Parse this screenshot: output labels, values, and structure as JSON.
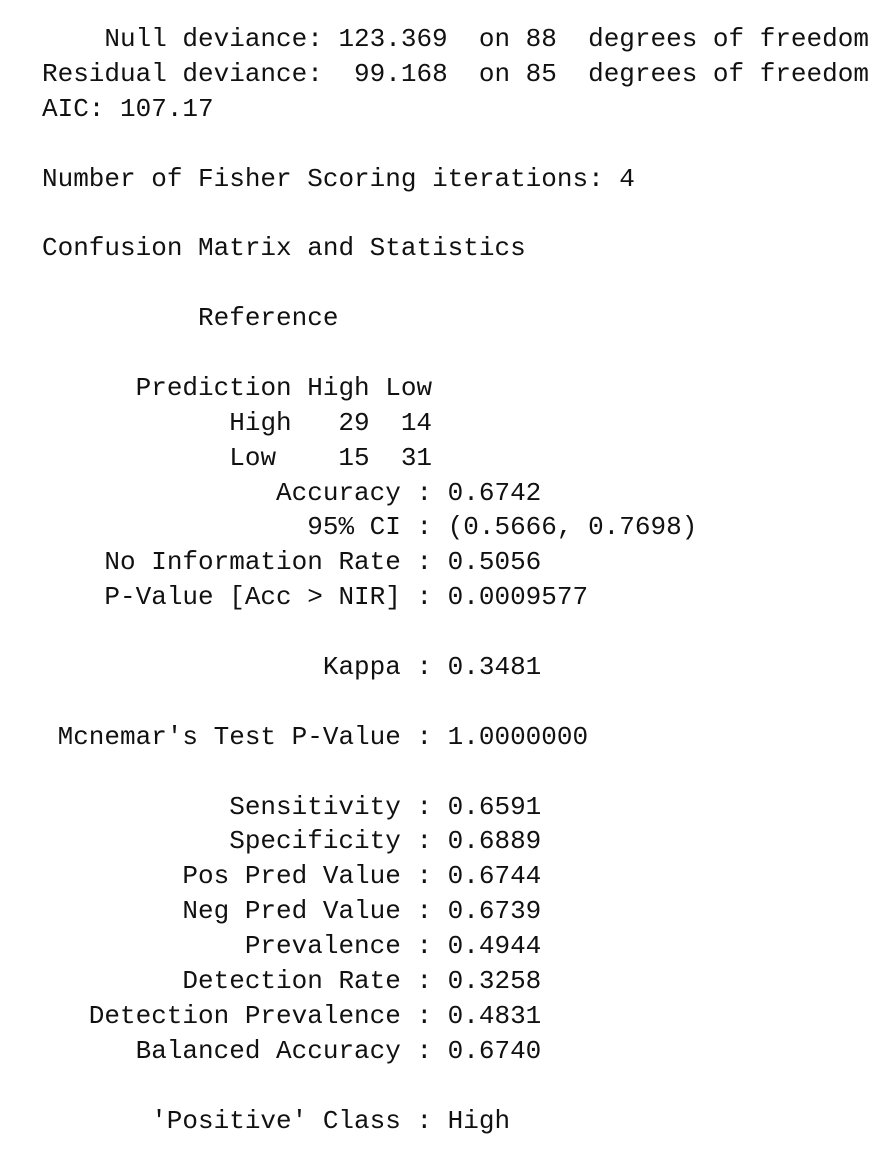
{
  "model_summary": {
    "null_deviance": "Null deviance: 123.369  on 88  degrees of freedom",
    "residual_deviance": "Residual deviance:  99.168  on 85  degrees of freedom",
    "aic": "AIC: 107.17",
    "iterations": "Number of Fisher Scoring iterations: 4"
  },
  "confusion": {
    "title": "Confusion Matrix and Statistics",
    "reference_label": "Reference",
    "prediction_label": "Prediction",
    "columns": [
      "High",
      "Low"
    ],
    "rows": [
      {
        "label": "High",
        "values": [
          29,
          14
        ]
      },
      {
        "label": "Low",
        "values": [
          15,
          31
        ]
      }
    ]
  },
  "statistics": [
    [
      "Accuracy : 0.6742",
      "95% CI : (0.5666, 0.7698)",
      "No Information Rate : 0.5056",
      "P-Value [Acc > NIR] : 0.0009577"
    ],
    [
      "Kappa : 0.3481"
    ],
    [
      "Mcnemar's Test P-Value : 1.0000000"
    ],
    [
      "Sensitivity : 0.6591",
      "Specificity : 0.6889",
      "Pos Pred Value : 0.6744",
      "Neg Pred Value : 0.6739",
      "Prevalence : 0.4944",
      "Detection Rate : 0.3258",
      "Detection Prevalence : 0.4831",
      "Balanced Accuracy : 0.6740"
    ],
    [
      "'Positive' Class : High"
    ]
  ]
}
